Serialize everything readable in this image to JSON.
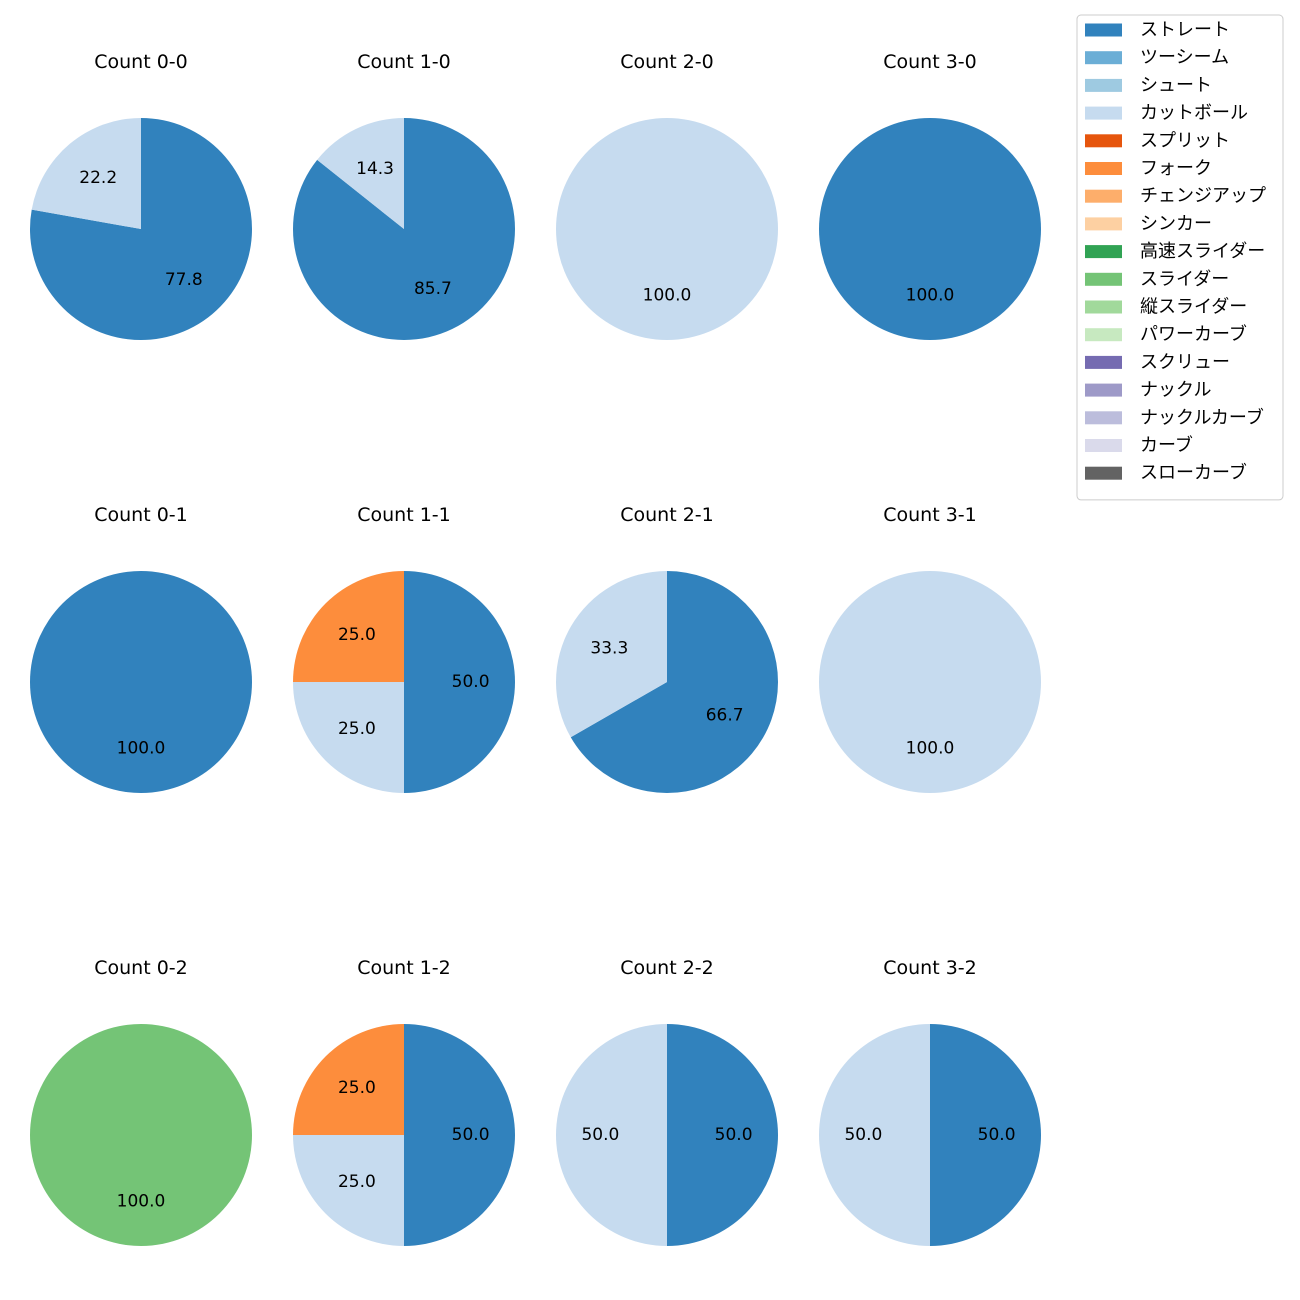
{
  "chart_data": {
    "type": "pie",
    "legend": {
      "placement": "top-right",
      "entries": [
        {
          "name": "ストレート",
          "color": "#3182bd"
        },
        {
          "name": "ツーシーム",
          "color": "#6baed6"
        },
        {
          "name": "シュート",
          "color": "#9ecae1"
        },
        {
          "name": "カットボール",
          "color": "#c6dbef"
        },
        {
          "name": "スプリット",
          "color": "#e6550d"
        },
        {
          "name": "フォーク",
          "color": "#fd8d3c"
        },
        {
          "name": "チェンジアップ",
          "color": "#fdae6b"
        },
        {
          "name": "シンカー",
          "color": "#fdd0a2"
        },
        {
          "name": "高速スライダー",
          "color": "#31a354"
        },
        {
          "name": "スライダー",
          "color": "#74c476"
        },
        {
          "name": "縦スライダー",
          "color": "#a1d99b"
        },
        {
          "name": "パワーカーブ",
          "color": "#c7e9c0"
        },
        {
          "name": "スクリュー",
          "color": "#756bb1"
        },
        {
          "name": "ナックル",
          "color": "#9e9ac8"
        },
        {
          "name": "ナックルカーブ",
          "color": "#bcbddc"
        },
        {
          "name": "カーブ",
          "color": "#dadaeb"
        },
        {
          "name": "スローカーブ",
          "color": "#636363"
        }
      ]
    },
    "pies": [
      {
        "title": "Count 0-0",
        "slices": [
          {
            "pitch": "ストレート",
            "value": 77.8
          },
          {
            "pitch": "カットボール",
            "value": 22.2
          }
        ]
      },
      {
        "title": "Count 1-0",
        "slices": [
          {
            "pitch": "ストレート",
            "value": 85.7
          },
          {
            "pitch": "カットボール",
            "value": 14.3
          }
        ]
      },
      {
        "title": "Count 2-0",
        "slices": [
          {
            "pitch": "カットボール",
            "value": 100.0
          }
        ]
      },
      {
        "title": "Count 3-0",
        "slices": [
          {
            "pitch": "ストレート",
            "value": 100.0
          }
        ]
      },
      {
        "title": "Count 0-1",
        "slices": [
          {
            "pitch": "ストレート",
            "value": 100.0
          }
        ]
      },
      {
        "title": "Count 1-1",
        "slices": [
          {
            "pitch": "ストレート",
            "value": 50.0
          },
          {
            "pitch": "カットボール",
            "value": 25.0
          },
          {
            "pitch": "フォーク",
            "value": 25.0
          }
        ]
      },
      {
        "title": "Count 2-1",
        "slices": [
          {
            "pitch": "ストレート",
            "value": 66.7
          },
          {
            "pitch": "カットボール",
            "value": 33.3
          }
        ]
      },
      {
        "title": "Count 3-1",
        "slices": [
          {
            "pitch": "カットボール",
            "value": 100.0
          }
        ]
      },
      {
        "title": "Count 0-2",
        "slices": [
          {
            "pitch": "スライダー",
            "value": 100.0
          }
        ]
      },
      {
        "title": "Count 1-2",
        "slices": [
          {
            "pitch": "ストレート",
            "value": 50.0
          },
          {
            "pitch": "カットボール",
            "value": 25.0
          },
          {
            "pitch": "フォーク",
            "value": 25.0
          }
        ]
      },
      {
        "title": "Count 2-2",
        "slices": [
          {
            "pitch": "ストレート",
            "value": 50.0
          },
          {
            "pitch": "カットボール",
            "value": 50.0
          }
        ]
      },
      {
        "title": "Count 3-2",
        "slices": [
          {
            "pitch": "ストレート",
            "value": 50.0
          },
          {
            "pitch": "カットボール",
            "value": 50.0
          }
        ]
      }
    ]
  }
}
